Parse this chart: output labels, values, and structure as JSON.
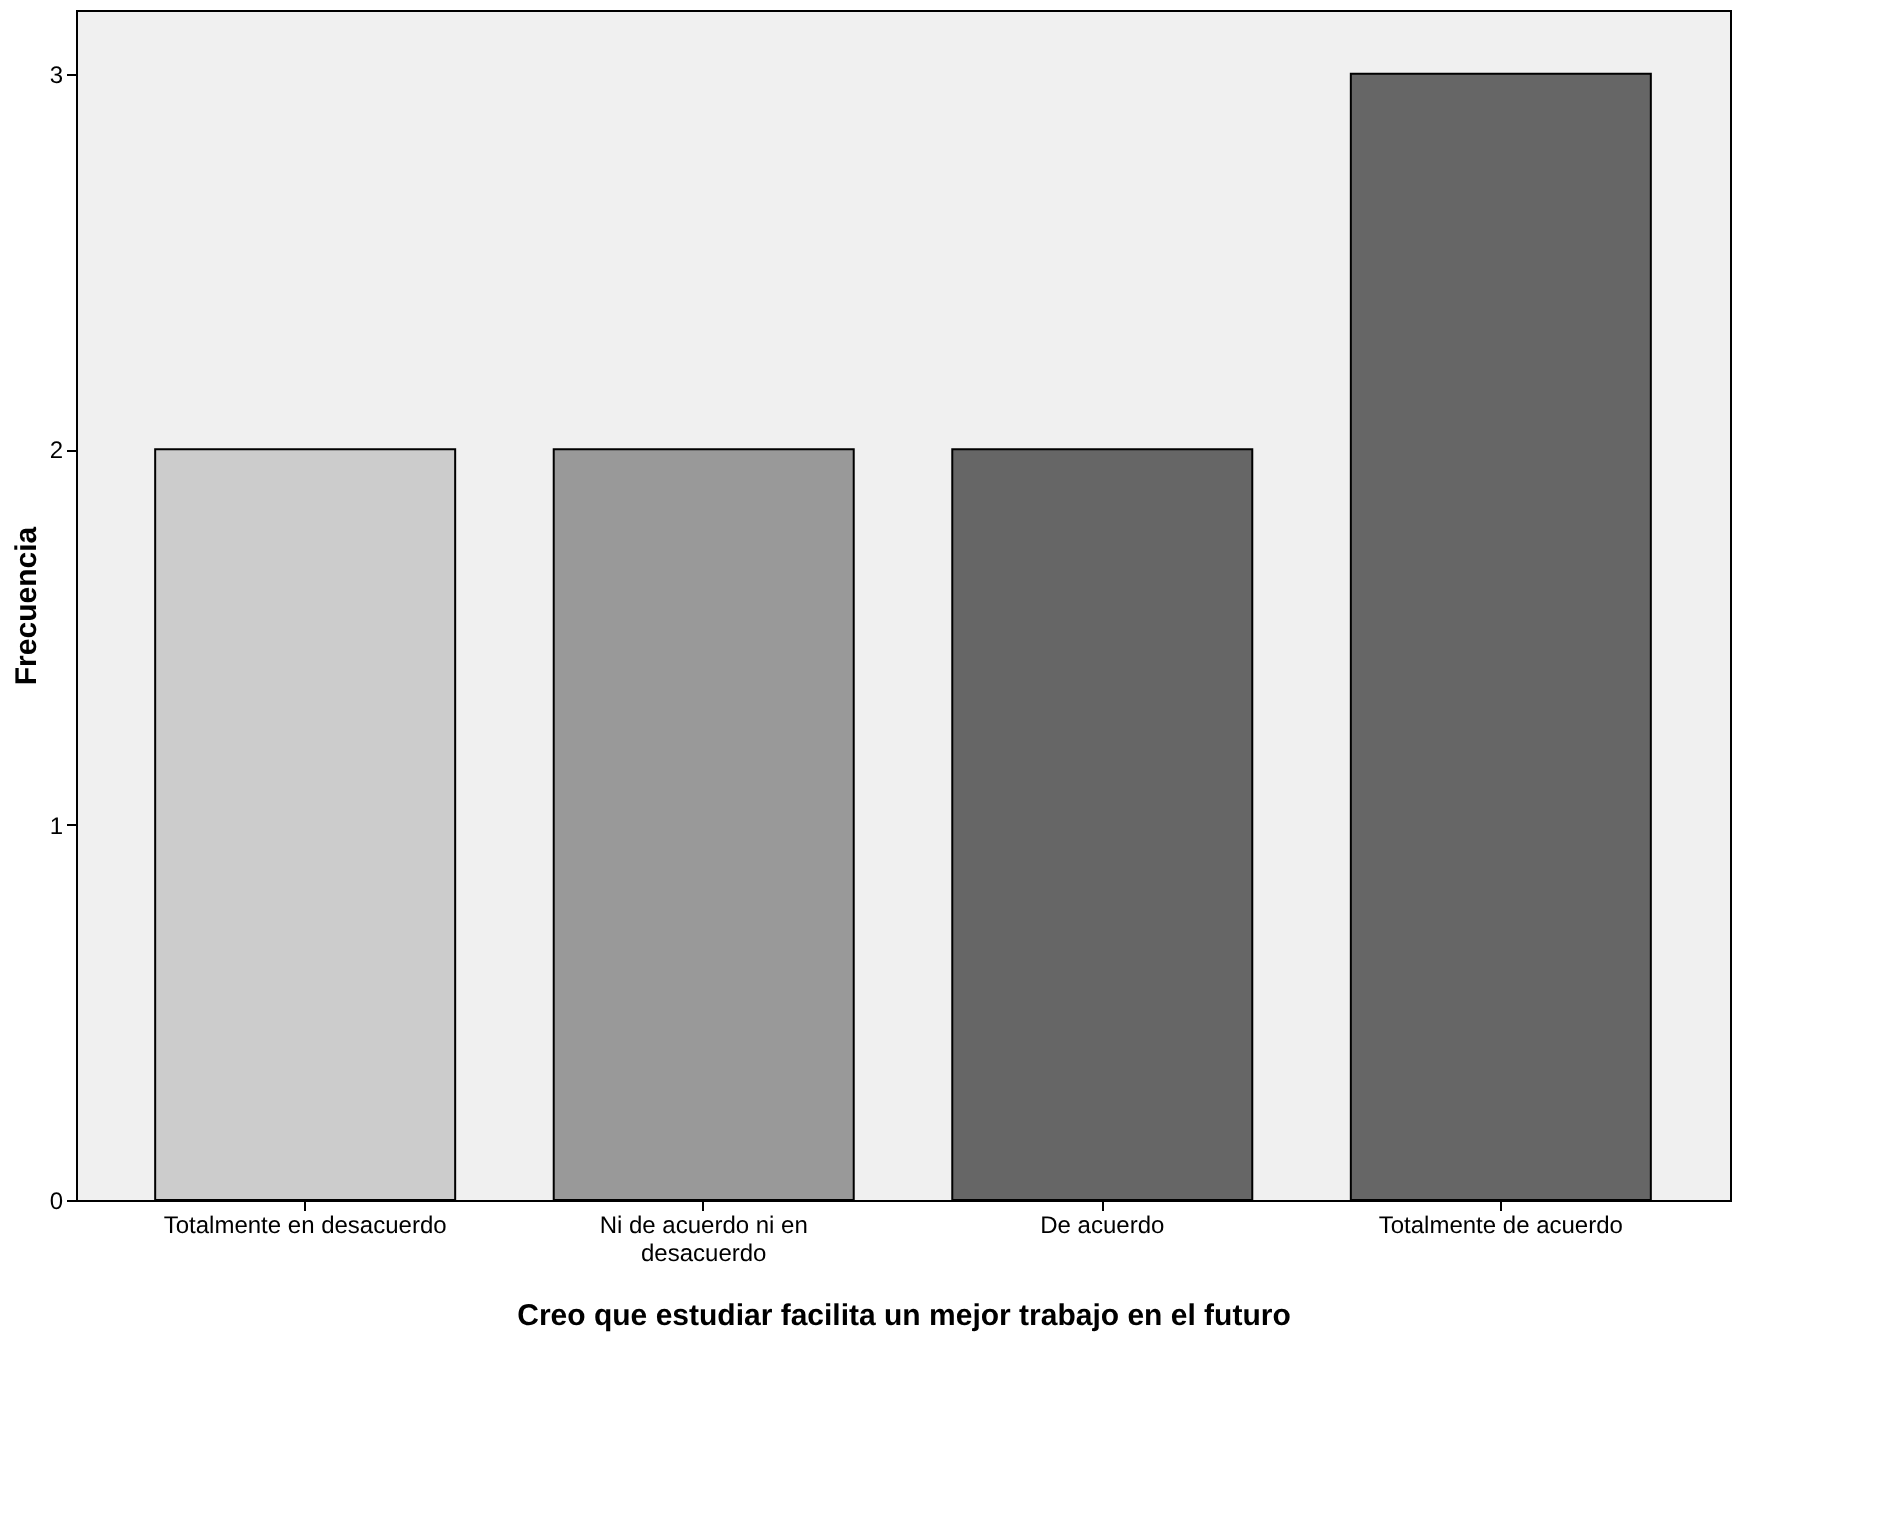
{
  "chart_data": {
    "type": "bar",
    "xlabel": "Creo que estudiar facilita un mejor trabajo en el futuro",
    "ylabel": "Frecuencia",
    "categories": [
      "Totalmente en desacuerdo",
      "Ni de acuerdo ni en desacuerdo",
      "De acuerdo",
      "Totalmente de acuerdo"
    ],
    "values": [
      2,
      2,
      2,
      3
    ],
    "colors": [
      "#cccccc",
      "#999999",
      "#666666",
      "#666666"
    ],
    "ylim": [
      0,
      3.17
    ],
    "yticks": [
      0,
      1,
      2,
      3
    ],
    "grid": false,
    "legend": false
  }
}
